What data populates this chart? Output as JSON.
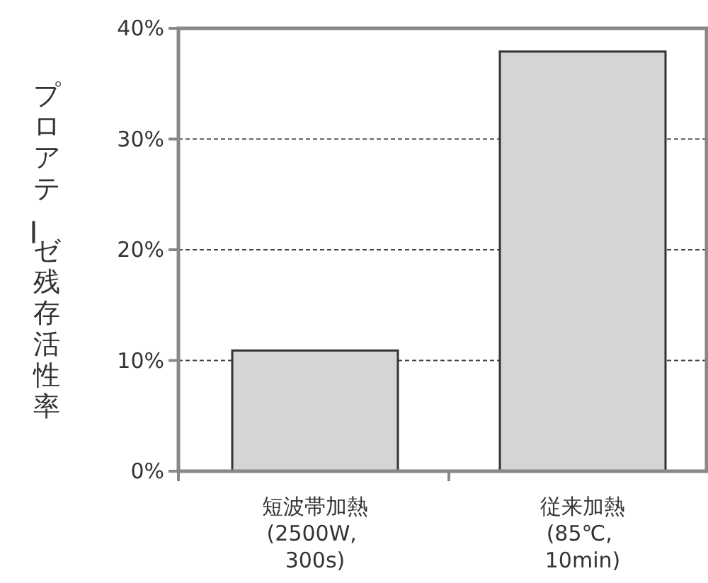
{
  "chart_data": {
    "type": "bar",
    "ylabel": "プロアテーゼ残存活性率",
    "categories": [
      "短波帯加熱 (2500W, 300s)",
      "従来加熱 (85℃, 10min)"
    ],
    "values": [
      10.9,
      37.9
    ],
    "color": "#d4d5d7",
    "ylim": [
      0,
      40
    ],
    "yticks": [
      {
        "value": 0,
        "label": "0%"
      },
      {
        "value": 10,
        "label": "10%"
      },
      {
        "value": 20,
        "label": "20%"
      },
      {
        "value": 30,
        "label": "30%"
      },
      {
        "value": 40,
        "label": "40%"
      }
    ],
    "grid": "y"
  }
}
